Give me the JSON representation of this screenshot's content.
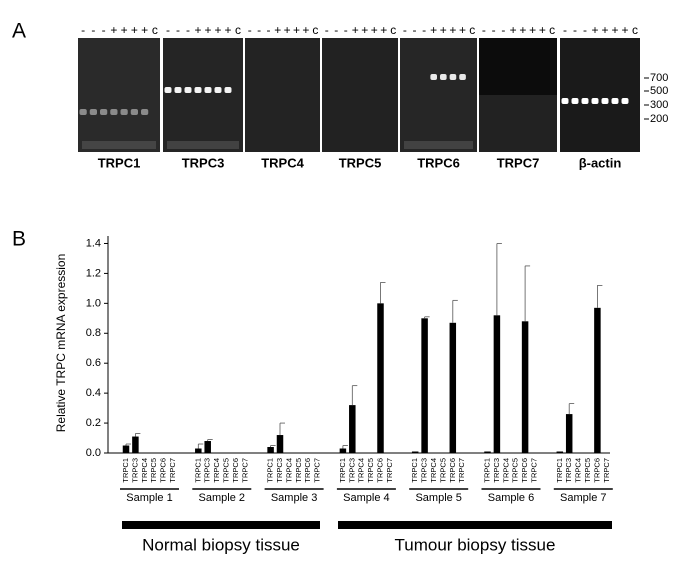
{
  "panel_a": {
    "label": "A",
    "gels": [
      {
        "name": "TRPC1",
        "lanes": [
          "-",
          "-",
          "-",
          "+",
          "+",
          "+",
          "+",
          "c"
        ]
      },
      {
        "name": "TRPC3",
        "lanes": [
          "-",
          "-",
          "-",
          "+",
          "+",
          "+",
          "+",
          "c"
        ]
      },
      {
        "name": "TRPC4",
        "lanes": [
          "-",
          "-",
          "-",
          "+",
          "+",
          "+",
          "+",
          "c"
        ]
      },
      {
        "name": "TRPC5",
        "lanes": [
          "-",
          "-",
          "-",
          "+",
          "+",
          "+",
          "+",
          "c"
        ]
      },
      {
        "name": "TRPC6",
        "lanes": [
          "-",
          "-",
          "-",
          "+",
          "+",
          "+",
          "+",
          "c"
        ]
      },
      {
        "name": "TRPC7",
        "lanes": [
          "-",
          "-",
          "-",
          "+",
          "+",
          "+",
          "+",
          "c"
        ]
      },
      {
        "name": "β-actin",
        "lanes": [
          "-",
          "-",
          "-",
          "+",
          "+",
          "+",
          "+",
          "c"
        ]
      }
    ],
    "markers": [
      "700",
      "500",
      "300",
      "200"
    ]
  },
  "chart_data": {
    "type": "bar",
    "panel_label": "B",
    "y_label": "Relative TRPC mRNA expression",
    "color": "#000000",
    "ylim": [
      0,
      1.45
    ],
    "yticks": [
      {
        "value": 0,
        "label": "0.0"
      },
      0.2,
      0.4,
      0.6,
      0.8,
      {
        "value": 1,
        "label": "1.0"
      },
      1.2,
      1.4
    ],
    "categories": [
      "TRPC1",
      "TRPC3",
      "TRPC4",
      "TRPC5",
      "TRPC6",
      "TRPC7",
      "TRPC1",
      "TRPC3",
      "TRPC4",
      "TRPC5",
      "TRPC6",
      "TRPC7",
      "TRPC1",
      "TRPC3",
      "TRPC4",
      "TRPC5",
      "TRPC6",
      "TRPC7",
      "TRPC1",
      "TRPC3",
      "TRPC4",
      "TRPC5",
      "TRPC6",
      "TRPC7",
      "TRPC1",
      "TRPC3",
      "TRPC4",
      "TRPC5",
      "TRPC6",
      "TRPC7",
      "TRPC1",
      "TRPC3",
      "TRPC4",
      "TRPC5",
      "TRPC6",
      "TRPC7",
      "TRPC1",
      "TRPC3",
      "TRPC4",
      "TRPC5",
      "TRPC6",
      "TRPC7"
    ],
    "values": [
      0.05,
      0.11,
      0,
      0,
      0,
      0,
      0.03,
      0.08,
      0,
      0,
      0,
      0,
      0.04,
      0.12,
      0,
      0,
      0,
      0,
      0.03,
      0.32,
      0,
      0,
      1.0,
      0,
      0.01,
      0.9,
      0,
      0,
      0.87,
      0,
      0.01,
      0.92,
      0,
      0,
      0.88,
      0,
      0.01,
      0.26,
      0,
      0,
      0.97,
      0
    ],
    "errors": [
      0.01,
      0.02,
      null,
      null,
      null,
      null,
      0.03,
      0.01,
      null,
      null,
      null,
      null,
      0.01,
      0.08,
      null,
      null,
      null,
      null,
      0.02,
      0.13,
      null,
      null,
      0.14,
      null,
      null,
      0.01,
      null,
      null,
      0.15,
      null,
      null,
      0.48,
      null,
      null,
      0.37,
      null,
      null,
      0.07,
      null,
      null,
      0.15,
      null
    ],
    "groups": [
      "Sample 1",
      "Sample 2",
      "Sample 3",
      "Sample 4",
      "Sample 5",
      "Sample 6",
      "Sample 7"
    ],
    "tissue_groups": [
      "Normal biopsy tissue",
      "Tumour biopsy tissue"
    ]
  }
}
